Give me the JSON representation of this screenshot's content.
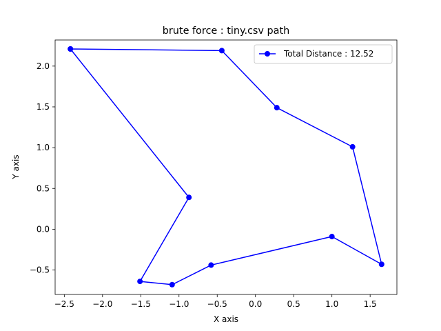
{
  "chart_data": {
    "type": "line",
    "title": "brute force : tiny.csv path",
    "xlabel": "X axis",
    "ylabel": "Y axis",
    "xlim": [
      -2.62,
      1.85
    ],
    "ylim": [
      -0.8,
      2.32
    ],
    "xticks": [
      -2.5,
      -2.0,
      -1.5,
      -1.0,
      -0.5,
      0.0,
      0.5,
      1.0,
      1.5
    ],
    "xtick_labels": [
      "−2.5",
      "−2.0",
      "−1.5",
      "−1.0",
      "−0.5",
      "0.0",
      "0.5",
      "1.0",
      "1.5"
    ],
    "yticks": [
      -0.5,
      0.0,
      0.5,
      1.0,
      1.5,
      2.0
    ],
    "ytick_labels": [
      "−0.5",
      "0.0",
      "0.5",
      "1.0",
      "1.5",
      "2.0"
    ],
    "grid": false,
    "legend_position": "top-right",
    "series": [
      {
        "name": "Total Distance : 12.52",
        "color": "#0000ff",
        "marker": "circle",
        "x": [
          -2.42,
          -0.44,
          0.28,
          1.27,
          1.65,
          1.0,
          -0.58,
          -1.09,
          -1.51,
          -0.87,
          -2.42
        ],
        "y": [
          2.21,
          2.19,
          1.49,
          1.01,
          -0.43,
          -0.09,
          -0.44,
          -0.68,
          -0.64,
          0.39,
          2.21
        ]
      }
    ]
  }
}
